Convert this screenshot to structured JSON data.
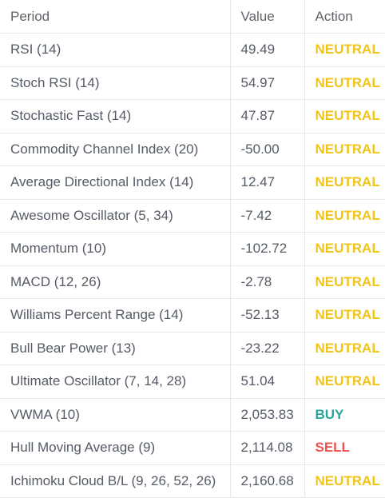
{
  "colors": {
    "neutral": "#f0c419",
    "buy": "#26a69a",
    "sell": "#ef5350"
  },
  "table": {
    "headers": {
      "period": "Period",
      "value": "Value",
      "action": "Action"
    },
    "rows": [
      {
        "period": "RSI (14)",
        "value": "49.49",
        "action": "NEUTRAL",
        "status": "neutral"
      },
      {
        "period": "Stoch RSI (14)",
        "value": "54.97",
        "action": "NEUTRAL",
        "status": "neutral"
      },
      {
        "period": "Stochastic Fast (14)",
        "value": "47.87",
        "action": "NEUTRAL",
        "status": "neutral"
      },
      {
        "period": "Commodity Channel Index (20)",
        "value": "-50.00",
        "action": "NEUTRAL",
        "status": "neutral"
      },
      {
        "period": "Average Directional Index (14)",
        "value": "12.47",
        "action": "NEUTRAL",
        "status": "neutral"
      },
      {
        "period": "Awesome Oscillator (5, 34)",
        "value": "-7.42",
        "action": "NEUTRAL",
        "status": "neutral"
      },
      {
        "period": "Momentum (10)",
        "value": "-102.72",
        "action": "NEUTRAL",
        "status": "neutral"
      },
      {
        "period": "MACD (12, 26)",
        "value": "-2.78",
        "action": "NEUTRAL",
        "status": "neutral"
      },
      {
        "period": "Williams Percent Range (14)",
        "value": "-52.13",
        "action": "NEUTRAL",
        "status": "neutral"
      },
      {
        "period": "Bull Bear Power (13)",
        "value": "-23.22",
        "action": "NEUTRAL",
        "status": "neutral"
      },
      {
        "period": "Ultimate Oscillator (7, 14, 28)",
        "value": "51.04",
        "action": "NEUTRAL",
        "status": "neutral"
      },
      {
        "period": "VWMA (10)",
        "value": "2,053.83",
        "action": "BUY",
        "status": "buy"
      },
      {
        "period": "Hull Moving Average (9)",
        "value": "2,114.08",
        "action": "SELL",
        "status": "sell"
      },
      {
        "period": "Ichimoku Cloud B/L (9, 26, 52, 26)",
        "value": "2,160.68",
        "action": "NEUTRAL",
        "status": "neutral"
      }
    ]
  }
}
